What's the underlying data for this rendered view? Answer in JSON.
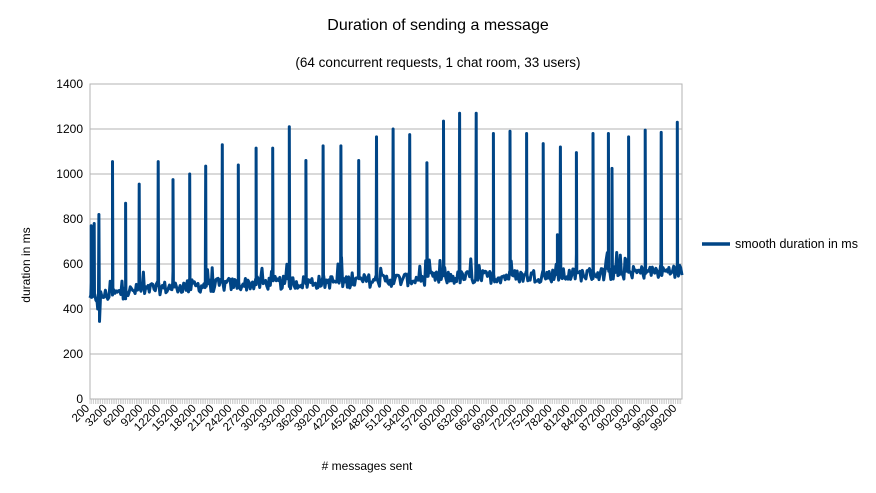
{
  "chart_data": {
    "type": "line",
    "title": "Duration of sending a message",
    "subtitle": "(64 concurrent requests, 1 chat room, 33 users)",
    "xlabel": "# messages sent",
    "ylabel": "duration in ms",
    "ylim": [
      0,
      1400
    ],
    "yticks": [
      0,
      200,
      400,
      600,
      800,
      1000,
      1200,
      1400
    ],
    "xlim": [
      200,
      100000
    ],
    "x_tick_labels": [
      "200",
      "3200",
      "6200",
      "9200",
      "12200",
      "15200",
      "18200",
      "21200",
      "24200",
      "27200",
      "30200",
      "33200",
      "36200",
      "39200",
      "42200",
      "45200",
      "48200",
      "51200",
      "54200",
      "57200",
      "60200",
      "63200",
      "66200",
      "69200",
      "72200",
      "75200",
      "78200",
      "81200",
      "84200",
      "87200",
      "90200",
      "93200",
      "96200",
      "99200"
    ],
    "grid": "horizontal",
    "legend_position": "right",
    "series": [
      {
        "name": "smooth duration in ms",
        "color": "#004586",
        "baseline": [
          {
            "x": 200,
            "y": 440
          },
          {
            "x": 2500,
            "y": 460
          },
          {
            "x": 5000,
            "y": 470
          },
          {
            "x": 10000,
            "y": 490
          },
          {
            "x": 20000,
            "y": 505
          },
          {
            "x": 30000,
            "y": 515
          },
          {
            "x": 40000,
            "y": 520
          },
          {
            "x": 50000,
            "y": 528
          },
          {
            "x": 60000,
            "y": 538
          },
          {
            "x": 70000,
            "y": 545
          },
          {
            "x": 80000,
            "y": 550
          },
          {
            "x": 90000,
            "y": 560
          },
          {
            "x": 100000,
            "y": 570
          }
        ],
        "peaks": [
          {
            "x": 400,
            "y": 770
          },
          {
            "x": 900,
            "y": 780
          },
          {
            "x": 1700,
            "y": 820
          },
          {
            "x": 4000,
            "y": 1055
          },
          {
            "x": 6200,
            "y": 870
          },
          {
            "x": 8500,
            "y": 955
          },
          {
            "x": 11700,
            "y": 1055
          },
          {
            "x": 14200,
            "y": 975
          },
          {
            "x": 17000,
            "y": 1000
          },
          {
            "x": 19700,
            "y": 1035
          },
          {
            "x": 22500,
            "y": 1130
          },
          {
            "x": 25200,
            "y": 1040
          },
          {
            "x": 28200,
            "y": 1115
          },
          {
            "x": 31000,
            "y": 1115
          },
          {
            "x": 33800,
            "y": 1210
          },
          {
            "x": 36600,
            "y": 1060
          },
          {
            "x": 39500,
            "y": 1125
          },
          {
            "x": 42500,
            "y": 1125
          },
          {
            "x": 45500,
            "y": 1060
          },
          {
            "x": 48500,
            "y": 1165
          },
          {
            "x": 51300,
            "y": 1200
          },
          {
            "x": 54100,
            "y": 1175
          },
          {
            "x": 57000,
            "y": 1050
          },
          {
            "x": 59800,
            "y": 1235
          },
          {
            "x": 62500,
            "y": 1270
          },
          {
            "x": 65300,
            "y": 1270
          },
          {
            "x": 68200,
            "y": 1180
          },
          {
            "x": 71000,
            "y": 1190
          },
          {
            "x": 73800,
            "y": 1180
          },
          {
            "x": 76600,
            "y": 1135
          },
          {
            "x": 79000,
            "y": 730
          },
          {
            "x": 79500,
            "y": 1120
          },
          {
            "x": 82200,
            "y": 1095
          },
          {
            "x": 85000,
            "y": 1180
          },
          {
            "x": 87600,
            "y": 1180
          },
          {
            "x": 88200,
            "y": 1025
          },
          {
            "x": 91000,
            "y": 1165
          },
          {
            "x": 93800,
            "y": 1195
          },
          {
            "x": 96500,
            "y": 1185
          },
          {
            "x": 99200,
            "y": 1230
          }
        ],
        "dips": [
          {
            "x": 1500,
            "y": 400
          },
          {
            "x": 1800,
            "y": 345
          }
        ]
      }
    ]
  }
}
